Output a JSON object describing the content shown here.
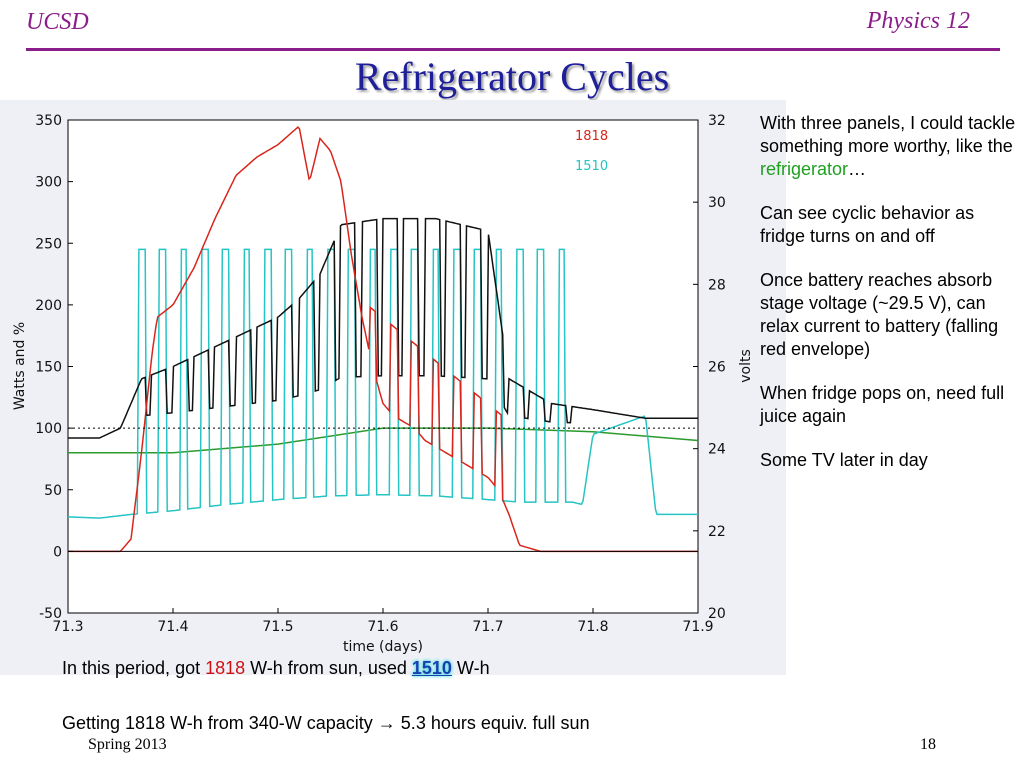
{
  "header": {
    "institution": "UCSD",
    "course": "Physics 12"
  },
  "title": "Refrigerator Cycles",
  "chart_data": {
    "type": "line",
    "xlabel": "time (days)",
    "ylabel": "Watts and %",
    "y2label": "volts",
    "xlim": [
      71.3,
      71.9
    ],
    "ylim": [
      -50,
      350
    ],
    "y2lim": [
      20,
      32
    ],
    "x_ticks": [
      "71.3",
      "71.4",
      "71.5",
      "71.6",
      "71.7",
      "71.8",
      "71.9"
    ],
    "y_ticks": [
      "-50",
      "0",
      "50",
      "100",
      "150",
      "200",
      "250",
      "300",
      "350"
    ],
    "y2_ticks": [
      "20",
      "22",
      "24",
      "26",
      "28",
      "30",
      "32"
    ],
    "legend": [
      {
        "label": "1818",
        "color": "#d9261c"
      },
      {
        "label": "1510",
        "color": "#26c4c4"
      }
    ],
    "legend_position": "top-right",
    "reference_line_y": 100,
    "series": [
      {
        "color": "#d9261c",
        "x": [
          71.3,
          71.32,
          71.35,
          71.36,
          71.37,
          71.375,
          71.38,
          71.385,
          71.4,
          71.42,
          71.44,
          71.46,
          71.48,
          71.5,
          71.52,
          71.53,
          71.54,
          71.55,
          71.56,
          71.57,
          71.58,
          71.59,
          71.6,
          71.61,
          71.62,
          71.63,
          71.64,
          71.66,
          71.68,
          71.7,
          71.71,
          71.72,
          71.73,
          71.75,
          71.8,
          71.9
        ],
        "y": [
          0,
          0,
          0,
          10,
          80,
          120,
          160,
          190,
          200,
          230,
          270,
          305,
          320,
          330,
          345,
          300,
          335,
          325,
          300,
          240,
          190,
          150,
          120,
          110,
          105,
          100,
          90,
          80,
          70,
          60,
          50,
          30,
          5,
          0,
          0,
          0
        ]
      },
      {
        "color": "#26c4c4",
        "x": [
          71.3,
          71.33,
          71.36,
          71.4,
          71.45,
          71.5,
          71.55,
          71.6,
          71.65,
          71.7,
          71.73,
          71.78,
          71.79,
          71.8,
          71.85,
          71.86,
          71.88,
          71.9
        ],
        "y": [
          28,
          27,
          30,
          33,
          38,
          42,
          45,
          46,
          45,
          42,
          40,
          40,
          38,
          95,
          110,
          30,
          30,
          30
        ],
        "peak_x": [
          71.37,
          71.39,
          71.41,
          71.43,
          71.45,
          71.47,
          71.49,
          71.51,
          71.53,
          71.55,
          71.57,
          71.59,
          71.61,
          71.63,
          71.65,
          71.67,
          71.69,
          71.71,
          71.73,
          71.75,
          71.77
        ],
        "peak_y": 245
      },
      {
        "color": "#111111",
        "x": [
          71.3,
          71.33,
          71.35,
          71.37,
          71.4,
          71.45,
          71.5,
          71.52,
          71.54,
          71.56,
          71.6,
          71.65,
          71.7,
          71.72,
          71.76,
          71.8,
          71.85,
          71.9
        ],
        "y": [
          92,
          92,
          100,
          140,
          150,
          170,
          190,
          205,
          225,
          265,
          270,
          270,
          260,
          140,
          120,
          115,
          108,
          108
        ],
        "dip_y": 100
      },
      {
        "color": "#2a9a2a",
        "x": [
          71.3,
          71.4,
          71.5,
          71.6,
          71.7,
          71.8,
          71.9
        ],
        "y": [
          80,
          80,
          87,
          100,
          100,
          97,
          90
        ]
      }
    ]
  },
  "notes": {
    "p1_text": "With three panels, I could tackle something more worthy, like the ",
    "p1_highlight": "refrigerator",
    "p1_end": "…",
    "p2": "Can see cyclic behavior as fridge turns on and off",
    "p3": "Once battery reaches absorb stage voltage (~29.5 V), can relax current to battery (falling red envelope)",
    "p4": "When fridge pops on, need full juice again",
    "p5": "Some TV later in day"
  },
  "summary": {
    "prefix": "In this period, got ",
    "got_value": "1818",
    "middle": " W-h from sun, used ",
    "used_value": "1510",
    "suffix": " W-h"
  },
  "capacity_line": "Getting 1818 W-h from 340-W capacity → 5.3 hours equiv. full sun",
  "footer": {
    "term": "Spring 2013",
    "slide_number": "18"
  }
}
